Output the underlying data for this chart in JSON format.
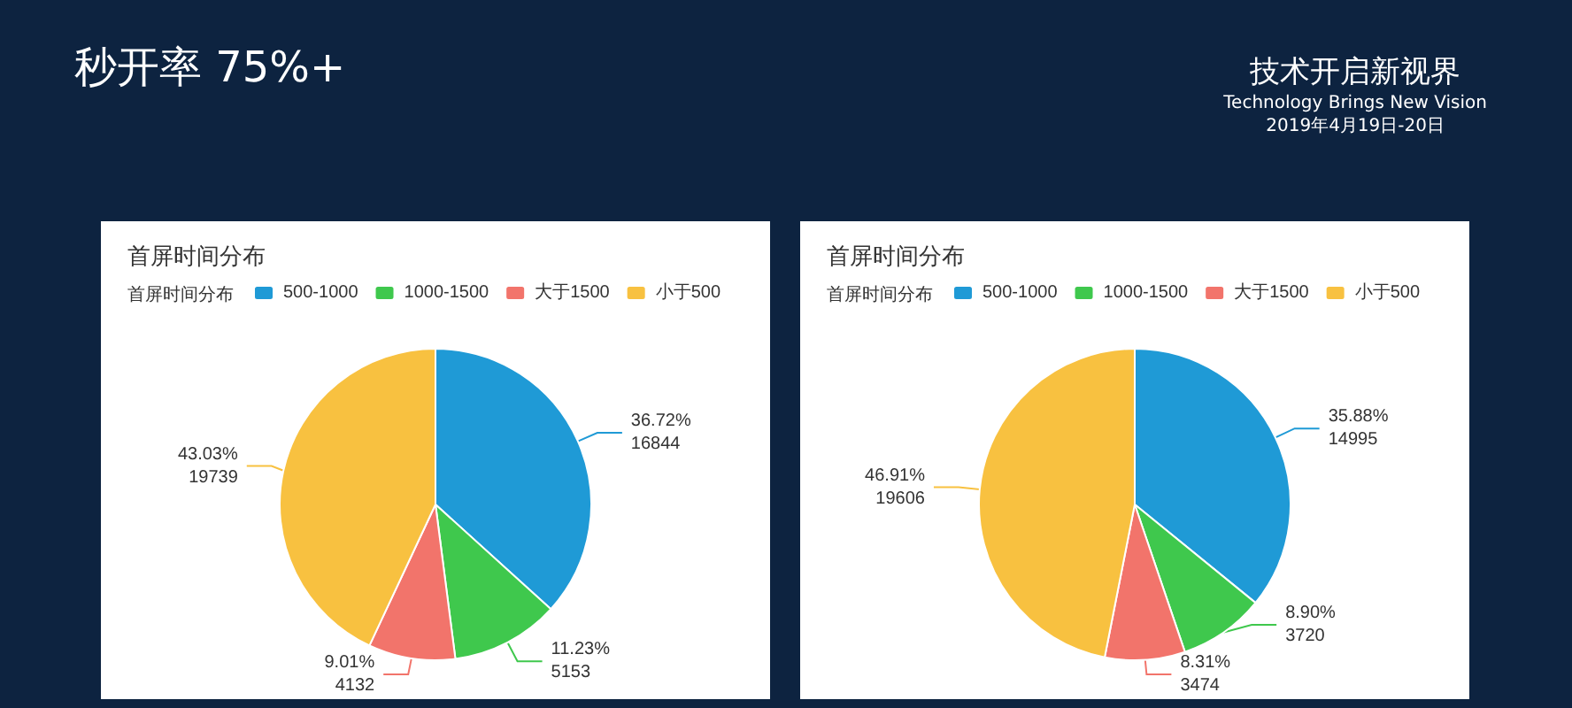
{
  "chart_data": [
    {
      "type": "other",
      "title": "秒开率 75%+",
      "annotations": [
        "技术开启新视界",
        "Technology Brings New Vision",
        "2019年4月19日-20日"
      ]
    },
    {
      "type": "pie",
      "title": "首屏时间分布",
      "legend_title": "首屏时间分布",
      "legend": "top",
      "categories": [
        "500-1000",
        "1000-1500",
        "大于1500",
        "小于500"
      ],
      "values": [
        16844,
        5153,
        4132,
        19739
      ],
      "value_labels": [
        "36.72%\n16844",
        "11.23%\n5153",
        "9.01%\n4132",
        "43.03%\n19739"
      ],
      "colors": [
        "#1f9ad6",
        "#3fc84d",
        "#f2746b",
        "#f8c140"
      ]
    },
    {
      "type": "pie",
      "title": "首屏时间分布",
      "legend_title": "首屏时间分布",
      "legend": "top",
      "categories": [
        "500-1000",
        "1000-1500",
        "大于1500",
        "小于500"
      ],
      "values": [
        14995,
        3720,
        3474,
        19606
      ],
      "value_labels": [
        "35.88%\n14995",
        "8.90%\n3720",
        "8.31%\n3474",
        "46.91%\n19606"
      ],
      "colors": [
        "#1f9ad6",
        "#3fc84d",
        "#f2746b",
        "#f8c140"
      ]
    }
  ]
}
